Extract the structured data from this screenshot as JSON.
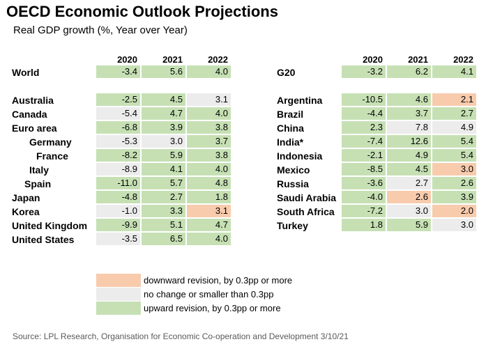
{
  "title": "OECD Economic Outlook Projections",
  "subtitle": "Real GDP growth (%, Year over Year)",
  "columns": [
    "2020",
    "2021",
    "2022"
  ],
  "colors": {
    "up": "#c6e0b4",
    "flat": "#ececec",
    "down": "#f8cbad"
  },
  "left_rows": [
    {
      "label": "World",
      "values": [
        "-3.4",
        "5.6",
        "4.0"
      ],
      "status": [
        "up",
        "up",
        "up"
      ]
    },
    {
      "label": "Australia",
      "values": [
        "-2.5",
        "4.5",
        "3.1"
      ],
      "status": [
        "up",
        "up",
        "flat"
      ]
    },
    {
      "label": "Canada",
      "values": [
        "-5.4",
        "4.7",
        "4.0"
      ],
      "status": [
        "flat",
        "up",
        "up"
      ]
    },
    {
      "label": "Euro area",
      "values": [
        "-6.8",
        "3.9",
        "3.8"
      ],
      "status": [
        "up",
        "up",
        "up"
      ]
    },
    {
      "label": "Germany",
      "values": [
        "-5.3",
        "3.0",
        "3.7"
      ],
      "status": [
        "flat",
        "flat",
        "up"
      ]
    },
    {
      "label": "France",
      "values": [
        "-8.2",
        "5.9",
        "3.8"
      ],
      "status": [
        "up",
        "up",
        "up"
      ]
    },
    {
      "label": "Italy",
      "values": [
        "-8.9",
        "4.1",
        "4.0"
      ],
      "status": [
        "flat",
        "up",
        "up"
      ]
    },
    {
      "label": "Spain",
      "values": [
        "-11.0",
        "5.7",
        "4.8"
      ],
      "status": [
        "up",
        "up",
        "up"
      ]
    },
    {
      "label": "Japan",
      "values": [
        "-4.8",
        "2.7",
        "1.8"
      ],
      "status": [
        "up",
        "up",
        "up"
      ]
    },
    {
      "label": "Korea",
      "values": [
        "-1.0",
        "3.3",
        "3.1"
      ],
      "status": [
        "flat",
        "up",
        "down"
      ]
    },
    {
      "label": "United Kingdom",
      "values": [
        "-9.9",
        "5.1",
        "4.7"
      ],
      "status": [
        "up",
        "up",
        "up"
      ]
    },
    {
      "label": "United States",
      "values": [
        "-3.5",
        "6.5",
        "4.0"
      ],
      "status": [
        "flat",
        "up",
        "up"
      ]
    }
  ],
  "right_rows": [
    {
      "label": "G20",
      "values": [
        "-3.2",
        "6.2",
        "4.1"
      ],
      "status": [
        "up",
        "up",
        "up"
      ]
    },
    {
      "label": "Argentina",
      "values": [
        "-10.5",
        "4.6",
        "2.1"
      ],
      "status": [
        "up",
        "up",
        "down"
      ]
    },
    {
      "label": "Brazil",
      "values": [
        "-4.4",
        "3.7",
        "2.7"
      ],
      "status": [
        "up",
        "up",
        "up"
      ]
    },
    {
      "label": "China",
      "values": [
        "2.3",
        "7.8",
        "4.9"
      ],
      "status": [
        "up",
        "flat",
        "flat"
      ]
    },
    {
      "label": "India*",
      "values": [
        "-7.4",
        "12.6",
        "5.4"
      ],
      "status": [
        "up",
        "up",
        "up"
      ]
    },
    {
      "label": "Indonesia",
      "values": [
        "-2.1",
        "4.9",
        "5.4"
      ],
      "status": [
        "up",
        "up",
        "up"
      ]
    },
    {
      "label": "Mexico",
      "values": [
        "-8.5",
        "4.5",
        "3.0"
      ],
      "status": [
        "up",
        "up",
        "down"
      ]
    },
    {
      "label": "Russia",
      "values": [
        "-3.6",
        "2.7",
        "2.6"
      ],
      "status": [
        "up",
        "flat",
        "up"
      ]
    },
    {
      "label": "Saudi Arabia",
      "values": [
        "-4.0",
        "2.6",
        "3.9"
      ],
      "status": [
        "up",
        "down",
        "up"
      ]
    },
    {
      "label": "South Africa",
      "values": [
        "-7.2",
        "3.0",
        "2.0"
      ],
      "status": [
        "up",
        "flat",
        "down"
      ]
    },
    {
      "label": "Turkey",
      "values": [
        "1.8",
        "5.9",
        "3.0"
      ],
      "status": [
        "up",
        "up",
        "flat"
      ]
    }
  ],
  "legend": [
    {
      "key": "down",
      "text": "downward revision, by 0.3pp or more"
    },
    {
      "key": "flat",
      "text": "no change or smaller than 0.3pp"
    },
    {
      "key": "up",
      "text": "upward revision, by 0.3pp or more"
    }
  ],
  "source": "Source: LPL Research, Organisation for Economic Co-operation and Development  3/10/21"
}
